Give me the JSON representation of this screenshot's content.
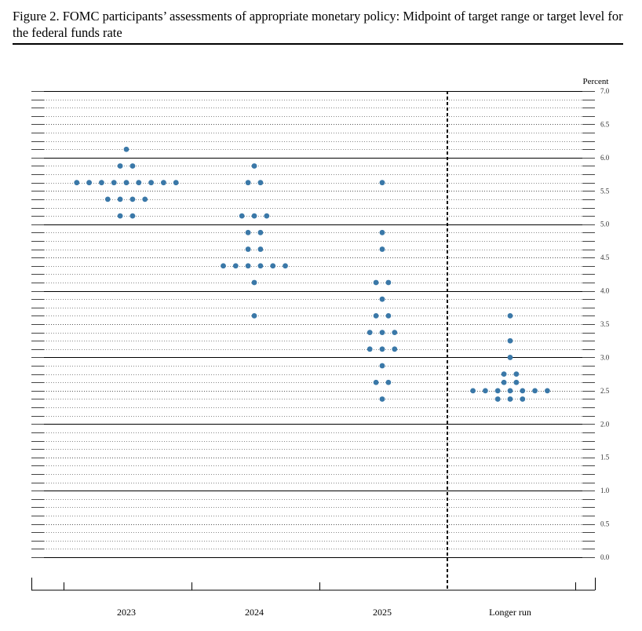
{
  "figure": {
    "title": "Figure 2.  FOMC participants’ assessments of appropriate monetary policy:  Midpoint of target range or target level for the federal funds rate"
  },
  "chart_data": {
    "type": "scatter",
    "title": "Figure 2.  FOMC participants’ assessments of appropriate monetary policy:  Midpoint of target range or target level for the federal funds rate",
    "ylabel": "Percent",
    "ylim": [
      0,
      7.0
    ],
    "ytick_step": 0.125,
    "yticks": [
      "0.0",
      "0.5",
      "1.0",
      "1.5",
      "2.0",
      "2.5",
      "3.0",
      "3.5",
      "4.0",
      "4.5",
      "5.0",
      "5.5",
      "6.0",
      "6.5",
      "7.0"
    ],
    "categories": [
      "2023",
      "2024",
      "2025",
      "Longer run"
    ],
    "dot_color": "#3a78a8",
    "grid": "dotted horizontal lines at every 0.25, solid at every 0.5",
    "divider": "dashed vertical line between 2025 and Longer run",
    "dots": [
      {
        "category": "2023",
        "counts": [
          {
            "y": 6.125,
            "n": 1
          },
          {
            "y": 5.875,
            "n": 2
          },
          {
            "y": 5.625,
            "n": 9
          },
          {
            "y": 5.375,
            "n": 4
          },
          {
            "y": 5.125,
            "n": 2
          }
        ]
      },
      {
        "category": "2024",
        "counts": [
          {
            "y": 5.875,
            "n": 1
          },
          {
            "y": 5.625,
            "n": 2
          },
          {
            "y": 5.125,
            "n": 3
          },
          {
            "y": 4.875,
            "n": 2
          },
          {
            "y": 4.625,
            "n": 2
          },
          {
            "y": 4.375,
            "n": 6
          },
          {
            "y": 4.125,
            "n": 1
          },
          {
            "y": 3.625,
            "n": 1
          }
        ]
      },
      {
        "category": "2025",
        "counts": [
          {
            "y": 5.625,
            "n": 1
          },
          {
            "y": 4.875,
            "n": 1
          },
          {
            "y": 4.625,
            "n": 1
          },
          {
            "y": 4.125,
            "n": 2
          },
          {
            "y": 3.875,
            "n": 1
          },
          {
            "y": 3.625,
            "n": 2
          },
          {
            "y": 3.375,
            "n": 3
          },
          {
            "y": 3.125,
            "n": 3
          },
          {
            "y": 2.875,
            "n": 1
          },
          {
            "y": 2.625,
            "n": 2
          },
          {
            "y": 2.375,
            "n": 1
          }
        ]
      },
      {
        "category": "Longer run",
        "counts": [
          {
            "y": 3.625,
            "n": 1
          },
          {
            "y": 3.25,
            "n": 1
          },
          {
            "y": 3.0,
            "n": 1
          },
          {
            "y": 2.75,
            "n": 2
          },
          {
            "y": 2.625,
            "n": 2
          },
          {
            "y": 2.5,
            "n": 7
          },
          {
            "y": 2.375,
            "n": 3
          }
        ]
      }
    ]
  }
}
